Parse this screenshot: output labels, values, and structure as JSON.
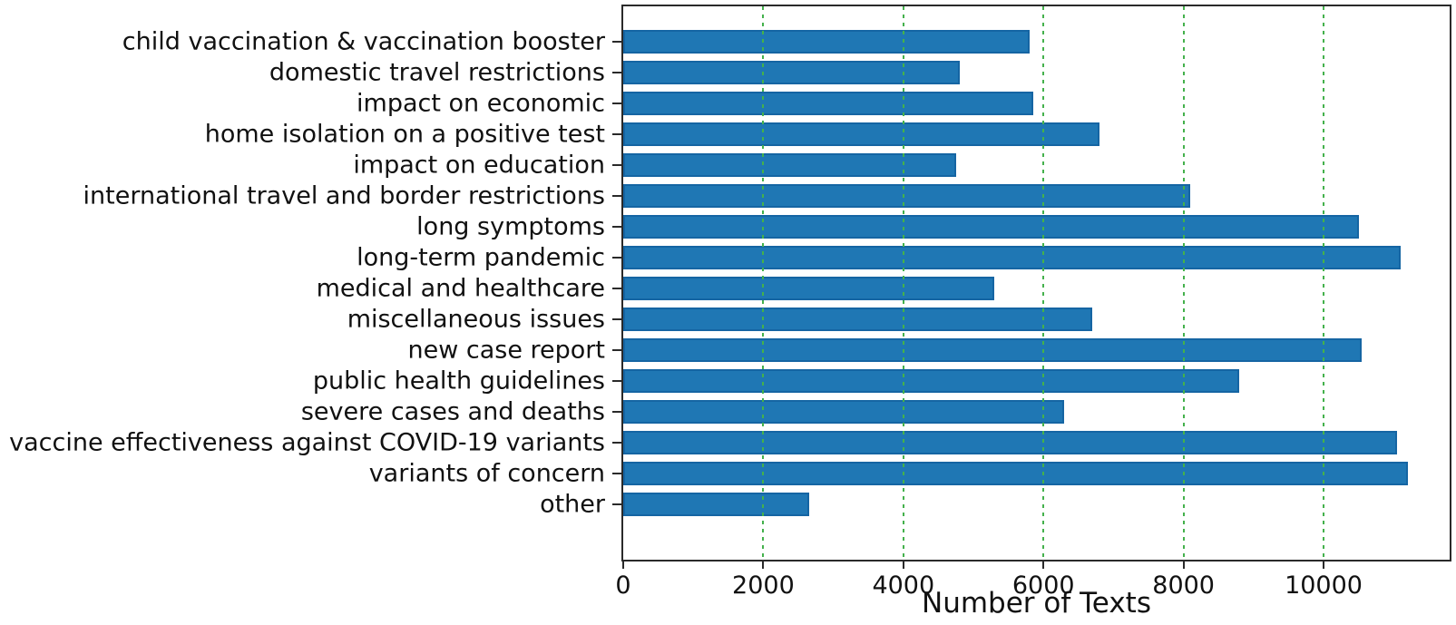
{
  "chart_data": {
    "type": "bar",
    "orientation": "horizontal",
    "title": "",
    "xlabel": "Number of Texts",
    "ylabel": "",
    "categories": [
      "child vaccination & vaccination booster",
      "domestic travel restrictions",
      "impact on economic",
      "home isolation on a positive test",
      "impact on education",
      "international travel and border restrictions",
      "long symptoms",
      "long-term pandemic",
      "medical and healthcare",
      "miscellaneous issues",
      "new case report",
      "public health guidelines",
      "severe cases and deaths",
      "vaccine effectiveness against COVID-19 variants",
      "variants of concern",
      "other"
    ],
    "values": [
      5800,
      4800,
      5850,
      6800,
      4750,
      8100,
      10500,
      11100,
      5300,
      6700,
      10550,
      8800,
      6300,
      11050,
      11200,
      2650
    ],
    "xlim": [
      0,
      11800
    ],
    "xticks": [
      0,
      2000,
      4000,
      6000,
      8000,
      10000
    ],
    "grid": {
      "axis": "x",
      "style": "dotted",
      "on_top": true
    },
    "legend": "none",
    "colors": {
      "bar_fill": "#1f77b4",
      "bar_edge": "#1565a3",
      "gridline": "#44b14c",
      "axis": "#2a2a2a",
      "text": "#111111",
      "background": "#ffffff"
    }
  }
}
